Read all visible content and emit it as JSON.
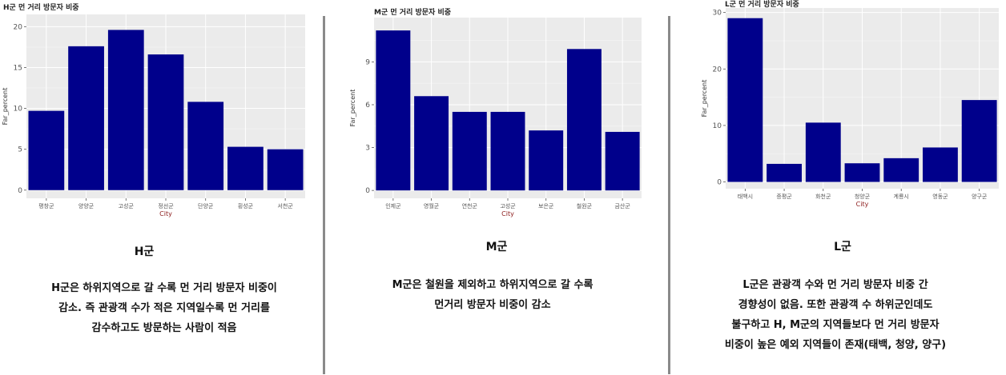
{
  "panels": [
    {
      "region": "H군",
      "description": [
        "H군은 하위지역으로 갈 수록 먼 거리 방문자 비중이",
        "감소. 즉 관광객 수가 적은 지역일수록 먼 거리를",
        "감수하고도 방문하는 사람이 적음"
      ],
      "chart_data": {
        "type": "bar",
        "title": "H군 먼 거리 방문자 비중",
        "xlabel": "City",
        "ylabel": "Far_percent",
        "categories": [
          "평창군",
          "양양군",
          "고성군",
          "정선군",
          "단양군",
          "횡성군",
          "서천군"
        ],
        "values": [
          9.7,
          17.6,
          19.6,
          16.6,
          10.8,
          5.3,
          5.0
        ],
        "yticks": [
          0,
          5,
          10,
          15,
          20
        ],
        "ylim": [
          -1,
          21.5
        ],
        "grid": true,
        "bar_color": "#00008b",
        "panel_color": "#ebebeb"
      }
    },
    {
      "region": "M군",
      "description": [
        "M군은 철원을 제외하고 하위지역으로 갈 수록",
        "먼거리 방문자 비중이 감소"
      ],
      "chart_data": {
        "type": "bar",
        "title": "M군 먼 거리 방문자 비중",
        "xlabel": "City",
        "ylabel": "Far_percent",
        "categories": [
          "인제군",
          "영월군",
          "연천군",
          "고성군",
          "보은군",
          "철원군",
          "금산군"
        ],
        "values": [
          11.2,
          6.6,
          5.5,
          5.5,
          4.2,
          9.9,
          4.1
        ],
        "yticks": [
          0,
          3,
          6,
          9
        ],
        "ylim": [
          -0.55,
          12.1
        ],
        "grid": true,
        "bar_color": "#00008b",
        "panel_color": "#ebebeb"
      }
    },
    {
      "region": "L군",
      "description": [
        "L군은 관광객 수와 먼 거리 방문자 비중 간",
        "경향성이 없음. 또한 관광객 수 하위군인데도",
        "불구하고 H, M군의 지역들보다 먼 거리 방문자",
        "비중이 높은 예외 지역들이 존재(태백, 청양, 양구)"
      ],
      "chart_data": {
        "type": "bar",
        "title": "L군 먼 거리 방문자 비중",
        "xlabel": "City",
        "ylabel": "Far_percent",
        "categories": [
          "태백시",
          "증평군",
          "화천군",
          "청양군",
          "계룡시",
          "영동군",
          "양구군"
        ],
        "values": [
          29.0,
          3.2,
          10.5,
          3.3,
          4.2,
          6.1,
          14.5
        ],
        "yticks": [
          0,
          10,
          20,
          30
        ],
        "ylim": [
          -1.2,
          30.8
        ],
        "grid": true,
        "bar_color": "#00008b",
        "panel_color": "#ebebeb"
      }
    }
  ]
}
